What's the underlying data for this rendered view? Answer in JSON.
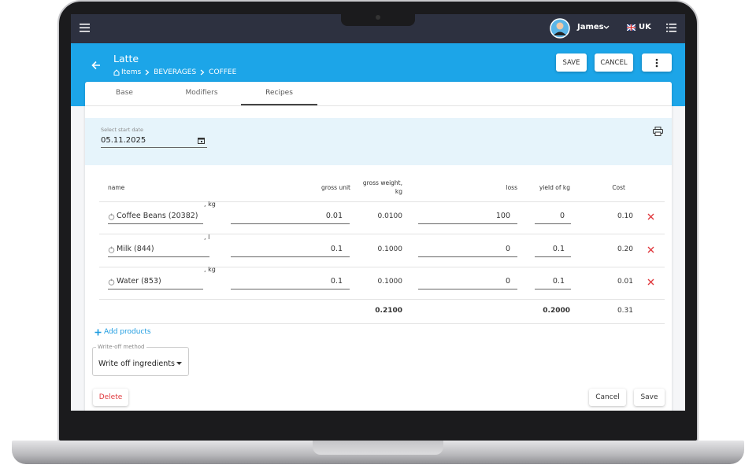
{
  "topbar": {
    "user": "James",
    "language": "UK"
  },
  "header": {
    "title": "Latte",
    "breadcrumb": [
      "Items",
      "BEVERAGES",
      "COFFEE"
    ],
    "save": "SAVE",
    "cancel": "CANCEL"
  },
  "tabs": [
    "Base",
    "Modifiers",
    "Recipes"
  ],
  "date": {
    "label": "Select start date",
    "value": "05.11.2025"
  },
  "table": {
    "columns": [
      "name",
      "gross unit",
      "gross weight, kg",
      "loss",
      "yield of kg",
      "Cost"
    ],
    "rows": [
      {
        "name": "Coffee Beans (20382)",
        "unit": ", kg",
        "gross_unit": "0.01",
        "gross_weight": "0.0100",
        "loss": "100",
        "yield": "0",
        "cost": "0.10"
      },
      {
        "name": "Milk (844)",
        "unit": ", l",
        "gross_unit": "0.1",
        "gross_weight": "0.1000",
        "loss": "0",
        "yield": "0.1",
        "cost": "0.20"
      },
      {
        "name": "Water (853)",
        "unit": ", kg",
        "gross_unit": "0.1",
        "gross_weight": "0.1000",
        "loss": "0",
        "yield": "0.1",
        "cost": "0.01"
      }
    ],
    "totals": {
      "gross_weight": "0.2100",
      "yield": "0.2000",
      "cost": "0.31"
    }
  },
  "add_products": "Add products",
  "write_off": {
    "label": "Write-off method",
    "value": "Write off ingredients"
  },
  "footer": {
    "delete": "Delete",
    "cancel": "Cancel",
    "save": "Save"
  }
}
